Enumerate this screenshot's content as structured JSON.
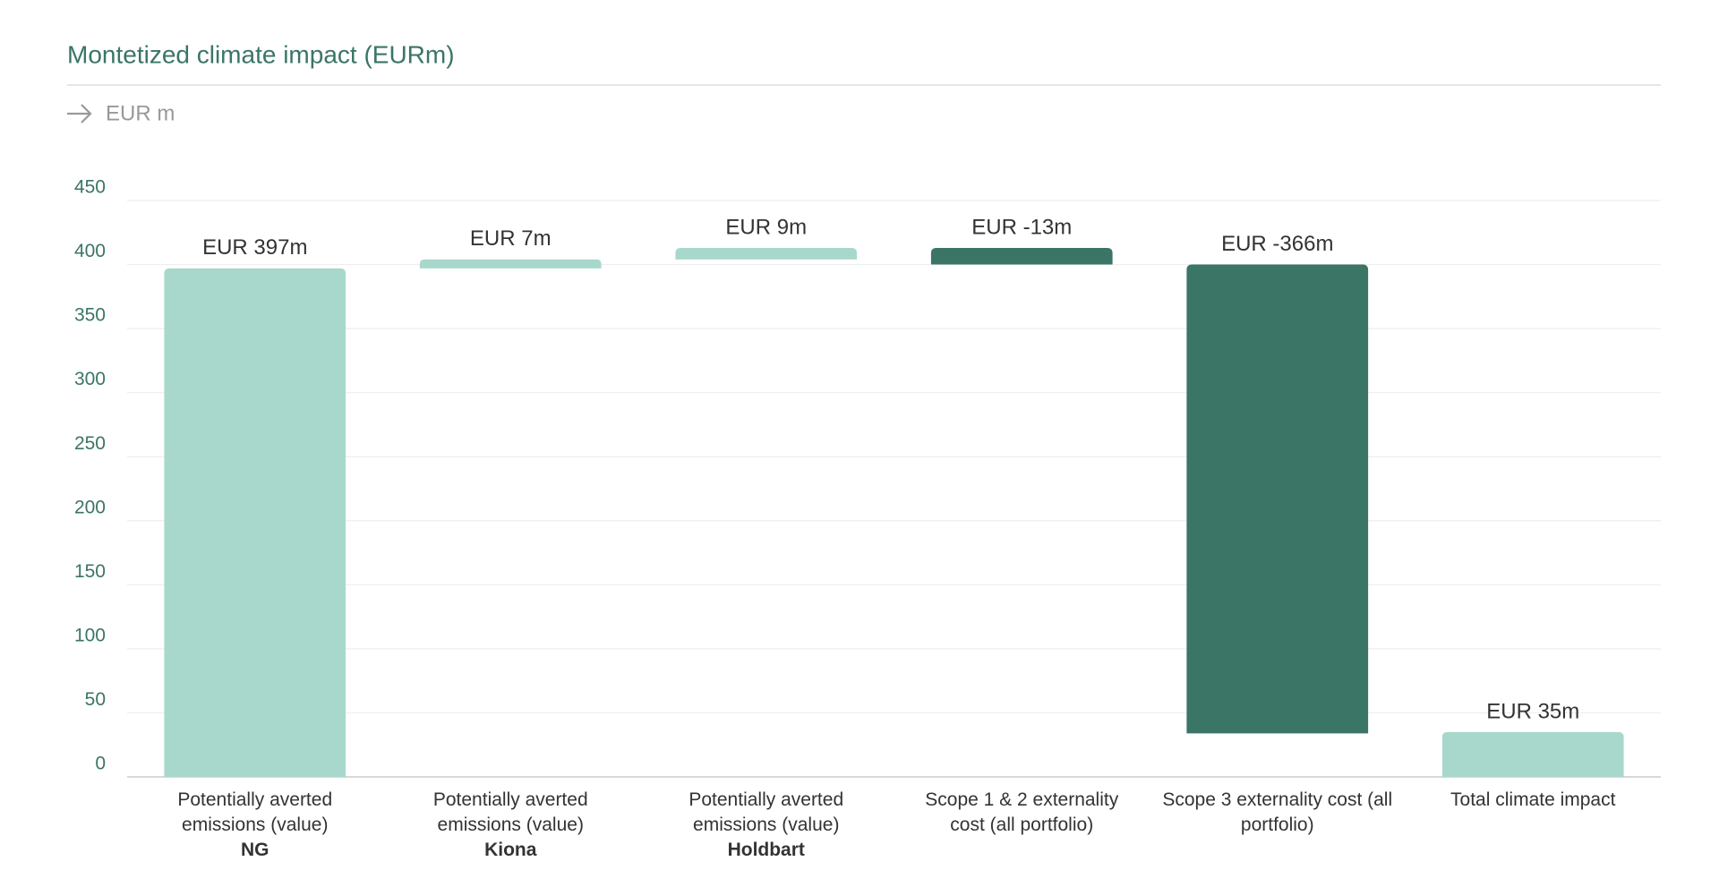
{
  "chart_data": {
    "type": "waterfall",
    "title": "Montetized climate impact (EURm)",
    "subtitle": "EUR m",
    "categories": [
      "Potentially averted emissions (value)",
      "Potentially averted emissions (value)",
      "Potentially averted emissions (value)",
      "Scope 1 & 2 externality cost (all portfolio)",
      "Scope 3 externality cost (all portfolio)",
      "Total climate impact"
    ],
    "category_notes": [
      "NG",
      "Kiona",
      "Holdbart",
      null,
      null,
      null
    ],
    "values": [
      397,
      7,
      9,
      -13,
      -366,
      35
    ],
    "value_labels": [
      "EUR 397m",
      "EUR 7m",
      "EUR 9m",
      "EUR -13m",
      "EUR -366m",
      "EUR 35m"
    ],
    "increase_color": "#a8d8cc",
    "decrease_color": "#3a7566",
    "total_color": "#a8d8cc",
    "ylim": [
      0,
      450
    ],
    "yticks": [
      0,
      50,
      100,
      150,
      200,
      250,
      300,
      350,
      400,
      450
    ],
    "grid": true
  }
}
